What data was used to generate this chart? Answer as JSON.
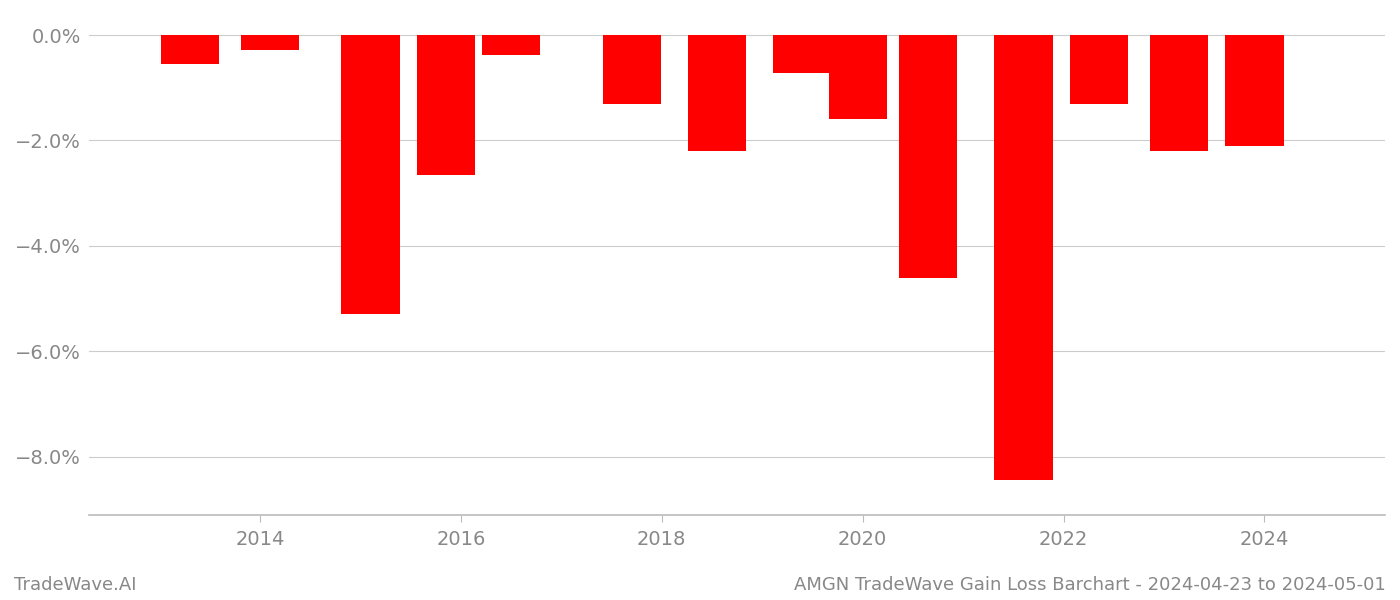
{
  "bar_centers": [
    2013.3,
    2014.1,
    2015.1,
    2015.85,
    2016.5,
    2017.7,
    2018.55,
    2019.4,
    2019.95,
    2020.65,
    2021.6,
    2022.35,
    2023.15,
    2023.9
  ],
  "values": [
    -0.55,
    -0.28,
    -5.3,
    -2.65,
    -0.38,
    -1.3,
    -2.2,
    -0.72,
    -1.6,
    -4.6,
    -8.45,
    -1.3,
    -2.2,
    -2.1
  ],
  "bar_color": "#ff0000",
  "background_color": "#ffffff",
  "title": "AMGN TradeWave Gain Loss Barchart - 2024-04-23 to 2024-05-01",
  "watermark": "TradeWave.AI",
  "yticks": [
    0.0,
    -2.0,
    -4.0,
    -6.0,
    -8.0
  ],
  "ytick_labels": [
    "0.0%",
    "−2.0%",
    "−4.0%",
    "−6.0%",
    "−8.0%"
  ],
  "xlim": [
    2012.3,
    2025.2
  ],
  "ylim": [
    -9.1,
    0.38
  ],
  "xticks": [
    2014,
    2016,
    2018,
    2020,
    2022,
    2024
  ],
  "grid_color": "#cccccc",
  "tick_color": "#888888",
  "bar_width": 0.58
}
